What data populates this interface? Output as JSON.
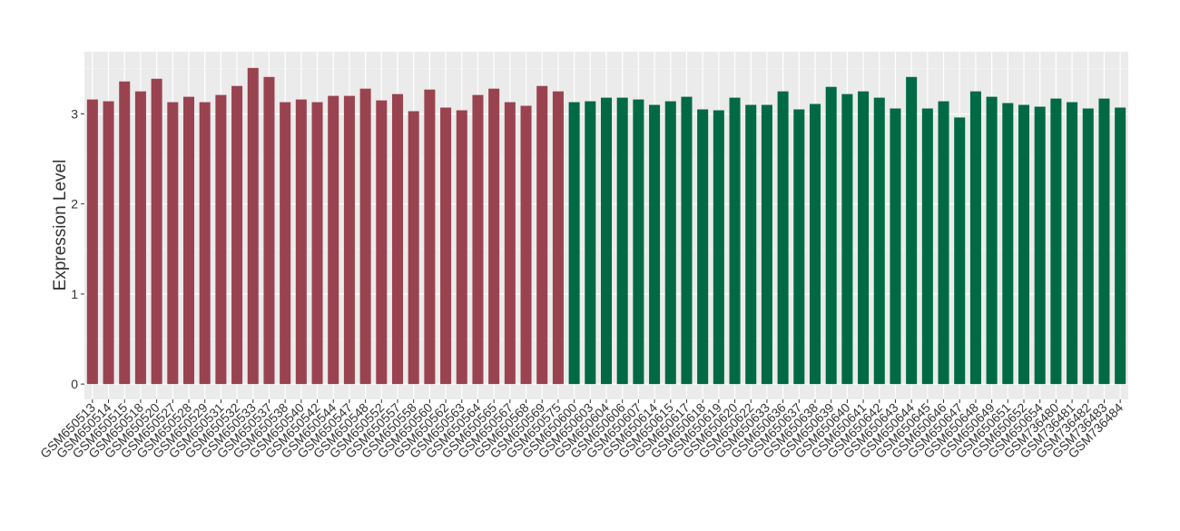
{
  "chart_data": {
    "type": "bar",
    "y_label": "Expression Level",
    "categories": [
      "GSM650513",
      "GSM650514",
      "GSM650515",
      "GSM650518",
      "GSM650520",
      "GSM650527",
      "GSM650528",
      "GSM650529",
      "GSM650531",
      "GSM650532",
      "GSM650533",
      "GSM650537",
      "GSM650538",
      "GSM650540",
      "GSM650542",
      "GSM650544",
      "GSM650547",
      "GSM650548",
      "GSM650552",
      "GSM650557",
      "GSM650558",
      "GSM650560",
      "GSM650562",
      "GSM650563",
      "GSM650564",
      "GSM650565",
      "GSM650567",
      "GSM650568",
      "GSM650569",
      "GSM650575",
      "GSM650600",
      "GSM650603",
      "GSM650604",
      "GSM650606",
      "GSM650607",
      "GSM650614",
      "GSM650615",
      "GSM650617",
      "GSM650618",
      "GSM650619",
      "GSM650620",
      "GSM650622",
      "GSM650633",
      "GSM650636",
      "GSM650637",
      "GSM650638",
      "GSM650639",
      "GSM650640",
      "GSM650641",
      "GSM650642",
      "GSM650643",
      "GSM650644",
      "GSM650645",
      "GSM650646",
      "GSM650647",
      "GSM650648",
      "GSM650649",
      "GSM650651",
      "GSM650652",
      "GSM650654",
      "GSM736480",
      "GSM736481",
      "GSM736482",
      "GSM736483",
      "GSM736484"
    ],
    "values": [
      3.16,
      3.14,
      3.36,
      3.25,
      3.39,
      3.13,
      3.19,
      3.13,
      3.21,
      3.31,
      3.51,
      3.41,
      3.13,
      3.16,
      3.13,
      3.2,
      3.2,
      3.28,
      3.15,
      3.22,
      3.03,
      3.27,
      3.07,
      3.04,
      3.21,
      3.28,
      3.13,
      3.09,
      3.31,
      3.25,
      3.13,
      3.14,
      3.18,
      3.18,
      3.16,
      3.1,
      3.14,
      3.19,
      3.05,
      3.04,
      3.18,
      3.1,
      3.1,
      3.25,
      3.05,
      3.11,
      3.3,
      3.22,
      3.25,
      3.18,
      3.06,
      3.41,
      3.06,
      3.14,
      2.96,
      3.25,
      3.19,
      3.12,
      3.1,
      3.08,
      3.17,
      3.13,
      3.06,
      3.17,
      3.07
    ],
    "colors": [
      "#9a4350",
      "#9a4350",
      "#9a4350",
      "#9a4350",
      "#9a4350",
      "#9a4350",
      "#9a4350",
      "#9a4350",
      "#9a4350",
      "#9a4350",
      "#9a4350",
      "#9a4350",
      "#9a4350",
      "#9a4350",
      "#9a4350",
      "#9a4350",
      "#9a4350",
      "#9a4350",
      "#9a4350",
      "#9a4350",
      "#9a4350",
      "#9a4350",
      "#9a4350",
      "#9a4350",
      "#9a4350",
      "#9a4350",
      "#9a4350",
      "#9a4350",
      "#9a4350",
      "#9a4350",
      "#006a44",
      "#006a44",
      "#006a44",
      "#006a44",
      "#006a44",
      "#006a44",
      "#006a44",
      "#006a44",
      "#006a44",
      "#006a44",
      "#006a44",
      "#006a44",
      "#006a44",
      "#006a44",
      "#006a44",
      "#006a44",
      "#006a44",
      "#006a44",
      "#006a44",
      "#006a44",
      "#006a44",
      "#006a44",
      "#006a44",
      "#006a44",
      "#006a44",
      "#006a44",
      "#006a44",
      "#006a44",
      "#006a44",
      "#006a44",
      "#006a44",
      "#006a44",
      "#006a44",
      "#006a44",
      "#006a44"
    ],
    "ylim": [
      -0.17,
      3.69
    ],
    "yticks": [
      0,
      1,
      2,
      3
    ],
    "grid": true
  }
}
